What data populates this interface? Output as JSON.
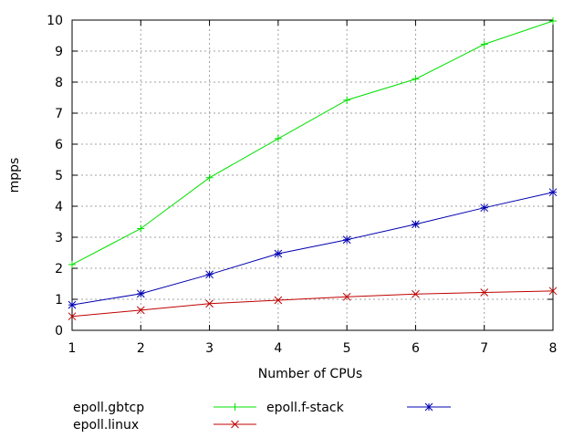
{
  "chart_data": {
    "type": "line",
    "title": "",
    "xlabel": "Number of CPUs",
    "ylabel": "mpps",
    "x": [
      1,
      2,
      3,
      4,
      5,
      6,
      7,
      8
    ],
    "xlim": [
      1,
      8
    ],
    "ylim": [
      0,
      10
    ],
    "xticks": [
      1,
      2,
      3,
      4,
      5,
      6,
      7,
      8
    ],
    "yticks": [
      0,
      1,
      2,
      3,
      4,
      5,
      6,
      7,
      8,
      9,
      10
    ],
    "grid": true,
    "legend_position": "bottom",
    "series": [
      {
        "name": "epoll.gbtcp",
        "color": "#00e000",
        "marker": "plus",
        "values": [
          2.12,
          3.28,
          4.92,
          6.18,
          7.42,
          8.1,
          9.22,
          9.97
        ]
      },
      {
        "name": "epoll.f-stack",
        "color": "#0000b0",
        "marker": "asterisk",
        "values": [
          0.82,
          1.18,
          1.8,
          2.47,
          2.92,
          3.42,
          3.95,
          4.45
        ]
      },
      {
        "name": "epoll.linux",
        "color": "#c00000",
        "marker": "cross",
        "values": [
          0.45,
          0.65,
          0.86,
          0.97,
          1.08,
          1.17,
          1.22,
          1.27
        ]
      }
    ]
  }
}
